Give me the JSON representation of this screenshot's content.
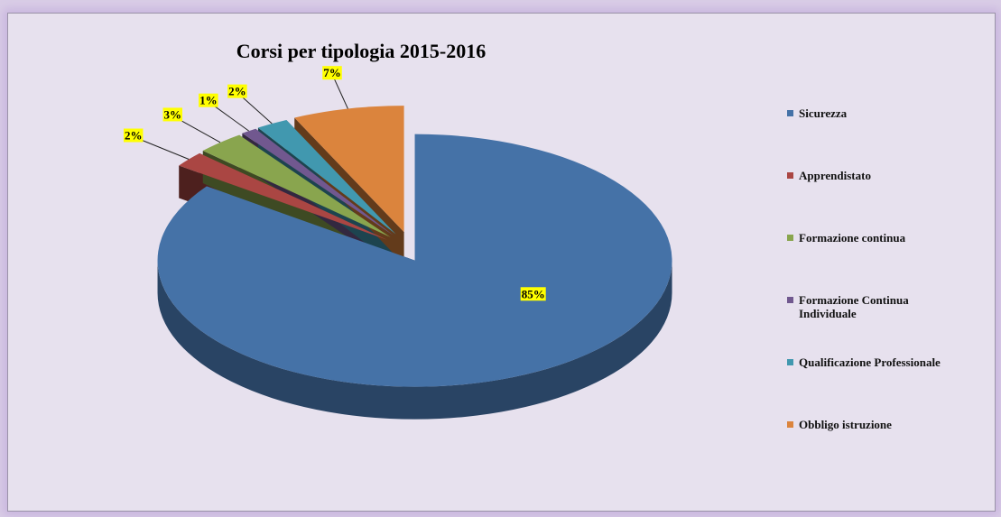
{
  "chart_data": {
    "type": "pie",
    "title": "Corsi per tipologia 2015-2016",
    "categories": [
      "Sicurezza",
      "Apprendistato",
      "Formazione continua",
      "Formazione Continua Individuale",
      "Qualificazione Professionale",
      "Obbligo istruzione"
    ],
    "values": [
      85,
      2,
      3,
      1,
      2,
      7
    ],
    "value_labels": [
      "85%",
      "2%",
      "3%",
      "1%",
      "2%",
      "7%"
    ],
    "colors": [
      "#4572a7",
      "#aa4643",
      "#89a54e",
      "#71588f",
      "#4198af",
      "#db843d"
    ],
    "legend": "right"
  }
}
